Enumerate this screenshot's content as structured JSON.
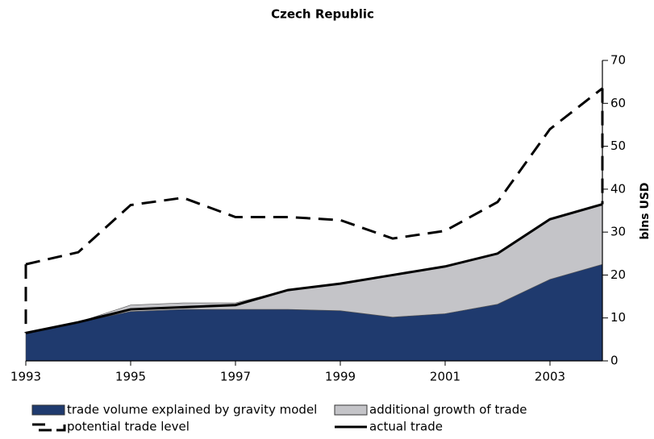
{
  "chart_data": {
    "type": "stacked-area-line",
    "title": "Czech Republic",
    "y_label": "blns USD",
    "x": [
      1993,
      1994,
      1995,
      1996,
      1997,
      1998,
      1999,
      2000,
      2001,
      2002,
      2003,
      2004
    ],
    "xlim": [
      1993,
      2004
    ],
    "xticks": [
      1993,
      1995,
      1997,
      1999,
      2001,
      2003
    ],
    "ylim": [
      0,
      70
    ],
    "yticks": [
      0,
      10,
      20,
      30,
      40,
      50,
      60,
      70
    ],
    "series": [
      {
        "name": "trade volume explained by gravity model",
        "type": "area",
        "color": "#1f3a6e",
        "values": [
          6.5,
          9,
          11.5,
          12,
          12,
          12,
          11.7,
          10.2,
          11,
          13.2,
          19,
          22.5
        ]
      },
      {
        "name": "additional growth of trade",
        "type": "area",
        "color": "#c4c4c8",
        "values": [
          0,
          0,
          1.5,
          1.5,
          1.5,
          4.5,
          6.3,
          9.8,
          11,
          11.8,
          14,
          14
        ]
      },
      {
        "name": "potential trade level",
        "type": "dashed-line",
        "color": "#000000",
        "values": [
          22.5,
          25.3,
          36.3,
          38,
          33.5,
          33.5,
          32.8,
          28.5,
          30.3,
          37,
          54,
          63.5
        ]
      },
      {
        "name": "actual trade",
        "type": "line",
        "color": "#000000",
        "values": [
          6.5,
          9,
          12,
          12.5,
          13,
          16.5,
          18,
          20,
          22,
          25,
          33,
          36.5
        ]
      }
    ]
  }
}
